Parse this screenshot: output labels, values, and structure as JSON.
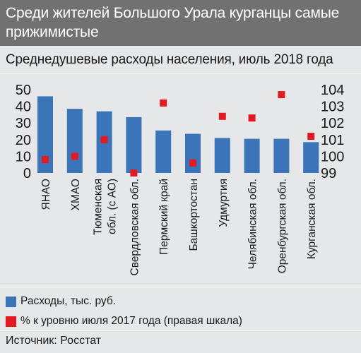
{
  "header": {
    "title": "Среди жителей Большого Урала курганцы самые прижимистые"
  },
  "source": "Источник: Росстат",
  "colors": {
    "bar": "#3b74b9",
    "marker": "#e21b22",
    "title_bg": "#717171",
    "page_bg": "#e6e7e8"
  },
  "chart_data": {
    "type": "bar",
    "title": "Среднедушевые расходы населения, июль 2018 года",
    "categories": [
      "ЯНАО",
      "ХМАО",
      "Тюменская обл. (с АО)",
      "Свердловская обл.",
      "Пермский край",
      "Башкортостан",
      "Удмуртия",
      "Челябинская обл.",
      "Оренбургская обл.",
      "Курганская обл."
    ],
    "category_lines": [
      [
        "ЯНАО"
      ],
      [
        "ХМАО"
      ],
      [
        "Тюменская",
        "обл. (с АО)"
      ],
      [
        "Свердловская обл."
      ],
      [
        "Пермский край"
      ],
      [
        "Башкортостан"
      ],
      [
        "Удмуртия"
      ],
      [
        "Челябинская обл."
      ],
      [
        "Оренбургская обл."
      ],
      [
        "Курганская обл."
      ]
    ],
    "series": [
      {
        "name": "Расходы, тыс. руб.",
        "axis": "left",
        "kind": "bar",
        "values": [
          46,
          38.5,
          37,
          33.5,
          25.5,
          23.5,
          21,
          20.5,
          20.5,
          18.5
        ]
      },
      {
        "name": "% к уровню июля 2017 года (правая шкала)",
        "axis": "right",
        "kind": "marker",
        "values": [
          99.8,
          100,
          101,
          99,
          103.2,
          99.6,
          102.4,
          102.3,
          103.7,
          101.2
        ]
      }
    ],
    "y_left": {
      "min": 0,
      "max": 50,
      "ticks": [
        0,
        10,
        20,
        30,
        40,
        50
      ]
    },
    "y_right": {
      "min": 99,
      "max": 104,
      "ticks": [
        99,
        100,
        101,
        102,
        103,
        104
      ]
    },
    "grid": false,
    "legend_position": "bottom"
  }
}
